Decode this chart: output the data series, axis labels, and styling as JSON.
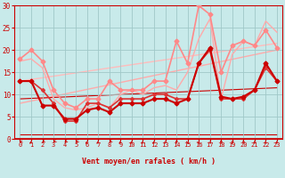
{
  "xlabel": "Vent moyen/en rafales ( km/h )",
  "xlim": [
    -0.5,
    23.5
  ],
  "ylim": [
    0,
    30
  ],
  "xticks": [
    0,
    1,
    2,
    3,
    4,
    5,
    6,
    7,
    8,
    9,
    10,
    11,
    12,
    13,
    14,
    15,
    16,
    17,
    18,
    19,
    20,
    21,
    22,
    23
  ],
  "yticks": [
    0,
    5,
    10,
    15,
    20,
    25,
    30
  ],
  "bg_color": "#c8eaea",
  "grid_color": "#a0c8c8",
  "series": [
    {
      "x": [
        0,
        1,
        2,
        3,
        4,
        5,
        6,
        7,
        8,
        9,
        10,
        11,
        12,
        13,
        14,
        15,
        16,
        17,
        18,
        19,
        20,
        21,
        22,
        23
      ],
      "y": [
        13,
        13,
        7.5,
        7.5,
        4.5,
        4.5,
        6.5,
        7,
        6,
        8,
        8,
        8,
        9,
        9,
        8,
        9,
        17,
        20.5,
        9.5,
        9,
        9.5,
        11,
        17,
        13
      ],
      "color": "#cc0000",
      "lw": 1.5,
      "marker": "D",
      "ms": 2.5,
      "zorder": 5
    },
    {
      "x": [
        0,
        1,
        2,
        3,
        4,
        5,
        6,
        7,
        8,
        9,
        10,
        11,
        12,
        13,
        14,
        15,
        16,
        17,
        18,
        19,
        20,
        21,
        22,
        23
      ],
      "y": [
        13,
        13,
        11,
        8,
        4,
        4,
        8,
        8,
        7,
        9,
        9,
        9,
        10,
        10,
        9,
        9,
        17,
        20,
        9,
        9,
        9,
        11,
        16,
        13
      ],
      "color": "#dd3333",
      "lw": 1.2,
      "marker": "D",
      "ms": 2.0,
      "zorder": 4
    },
    {
      "x": [
        0,
        1,
        2,
        3,
        4,
        5,
        6,
        7,
        8,
        9,
        10,
        11,
        12,
        13,
        14,
        15,
        16,
        17,
        18,
        19,
        20,
        21,
        22,
        23
      ],
      "y": [
        18,
        20,
        17.5,
        11,
        8,
        7,
        9,
        9,
        13,
        11,
        11,
        11,
        13,
        13,
        22,
        17,
        30,
        28,
        15,
        21,
        22,
        21,
        24.5,
        20.5
      ],
      "color": "#ff8888",
      "lw": 1.2,
      "marker": "D",
      "ms": 2.5,
      "zorder": 3
    },
    {
      "x": [
        0,
        1,
        2,
        3,
        4,
        5,
        6,
        7,
        8,
        9,
        10,
        11,
        12,
        13,
        14,
        15,
        16,
        17,
        18,
        19,
        20,
        21,
        22,
        23
      ],
      "y": [
        17.5,
        18,
        16,
        9,
        7,
        6.5,
        7,
        8,
        7,
        10,
        11,
        10,
        11.5,
        12,
        11,
        15,
        22.5,
        27,
        9,
        19,
        22,
        21,
        26.5,
        24
      ],
      "color": "#ffaaaa",
      "lw": 1.0,
      "marker": null,
      "ms": 0,
      "zorder": 2
    },
    {
      "x": [
        0,
        23
      ],
      "y": [
        8.0,
        20.0
      ],
      "color": "#ffaaaa",
      "lw": 1.0,
      "marker": null,
      "ms": 0,
      "zorder": 1
    },
    {
      "x": [
        0,
        23
      ],
      "y": [
        13.0,
        21.5
      ],
      "color": "#ffbbbb",
      "lw": 1.0,
      "marker": null,
      "ms": 0,
      "zorder": 1
    },
    {
      "x": [
        0,
        23
      ],
      "y": [
        9.0,
        11.5
      ],
      "color": "#cc0000",
      "lw": 0.8,
      "marker": null,
      "ms": 0,
      "zorder": 1
    },
    {
      "x": [
        0,
        23
      ],
      "y": [
        1.0,
        1.0
      ],
      "color": "#cc0000",
      "lw": 0.8,
      "marker": null,
      "ms": 0,
      "zorder": 1
    }
  ],
  "arrow_color": "#cc0000",
  "tick_color": "#cc0000",
  "label_fontsize": 6.0,
  "tick_fontsize_x": 5.0,
  "tick_fontsize_y": 5.5
}
